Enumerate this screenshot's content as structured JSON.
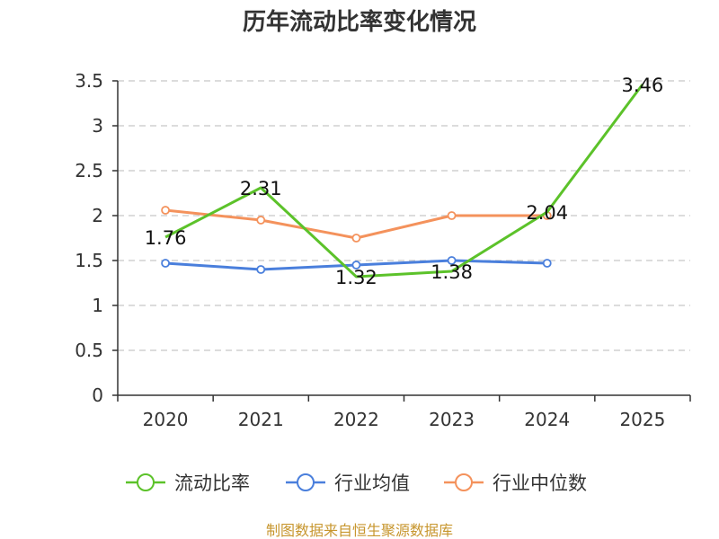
{
  "chart_data": {
    "type": "line",
    "title": "历年流动比率变化情况",
    "categories": [
      "2020",
      "2021",
      "2022",
      "2023",
      "2024",
      "2025"
    ],
    "ylim": [
      0,
      3.5
    ],
    "yticks": [
      "0",
      "0.5",
      "1",
      "1.5",
      "2",
      "2.5",
      "3",
      "3.5"
    ],
    "grid": true,
    "legend_position": "bottom",
    "series": [
      {
        "name": "流动比率",
        "color": "#5cc22a",
        "values": [
          1.76,
          2.31,
          1.32,
          1.38,
          2.04,
          3.46
        ],
        "labels": [
          "1.76",
          "2.31",
          "1.32",
          "1.38",
          "2.04",
          "3.46"
        ]
      },
      {
        "name": "行业均值",
        "color": "#4a7fdc",
        "values": [
          1.47,
          1.4,
          1.45,
          1.5,
          1.47,
          null
        ]
      },
      {
        "name": "行业中位数",
        "color": "#f4925c",
        "values": [
          2.06,
          1.95,
          1.75,
          2.0,
          2.0,
          null
        ]
      }
    ],
    "source": "制图数据来自恒生聚源数据库"
  }
}
